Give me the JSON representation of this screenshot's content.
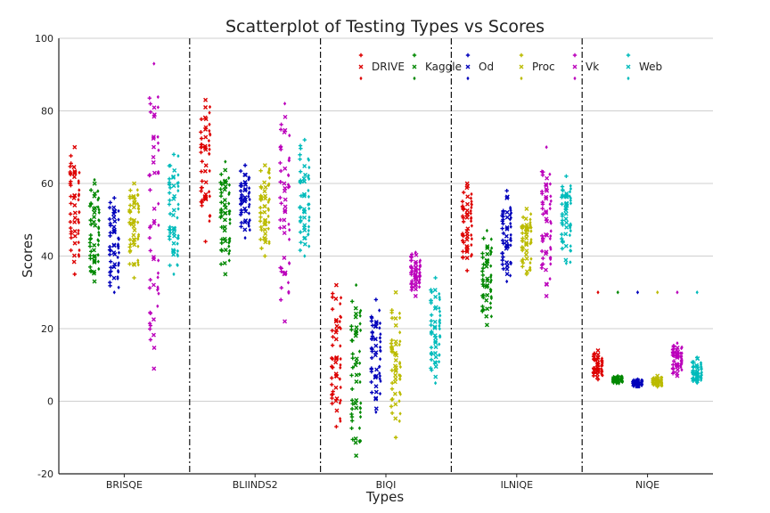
{
  "chart_data": {
    "type": "scatter",
    "title": "Scatterplot of Testing Types vs Scores",
    "xlabel": "Types",
    "ylabel": "Scores",
    "categories": [
      "BRISQE",
      "BLIINDS2",
      "BIQI",
      "ILNIQE",
      "NIQE"
    ],
    "ylim": [
      -20,
      100
    ],
    "yticks": [
      -20,
      0,
      20,
      40,
      60,
      80,
      100
    ],
    "grid": "horizontal",
    "legend_position": "top-right",
    "series": [
      {
        "name": "DRIVE",
        "color": "#dd0000",
        "values": [
          [
            35,
            70
          ],
          [
            44,
            83
          ],
          [
            -7,
            32
          ],
          [
            36,
            60
          ],
          [
            6,
            14
          ]
        ]
      },
      {
        "name": "Kaggle",
        "color": "#008800",
        "values": [
          [
            33,
            61
          ],
          [
            35,
            66
          ],
          [
            -15,
            32
          ],
          [
            21,
            47
          ],
          [
            5,
            7
          ]
        ]
      },
      {
        "name": "Od",
        "color": "#0000bb",
        "values": [
          [
            30,
            56
          ],
          [
            45,
            65
          ],
          [
            -3,
            28
          ],
          [
            33,
            58
          ],
          [
            4,
            6
          ]
        ]
      },
      {
        "name": "Proc",
        "color": "#bbbb00",
        "values": [
          [
            34,
            60
          ],
          [
            40,
            65
          ],
          [
            -10,
            30
          ],
          [
            35,
            53
          ],
          [
            4,
            7
          ]
        ]
      },
      {
        "name": "Vk",
        "color": "#bb00bb",
        "values": [
          [
            9,
            93
          ],
          [
            22,
            82
          ],
          [
            29,
            41
          ],
          [
            29,
            70
          ],
          [
            7,
            16
          ]
        ]
      },
      {
        "name": "Web",
        "color": "#00bbbb",
        "values": [
          [
            35,
            68
          ],
          [
            40,
            72
          ],
          [
            5,
            34
          ],
          [
            38,
            62
          ],
          [
            5,
            12
          ]
        ]
      }
    ],
    "niqe_outlier_row": 30
  }
}
